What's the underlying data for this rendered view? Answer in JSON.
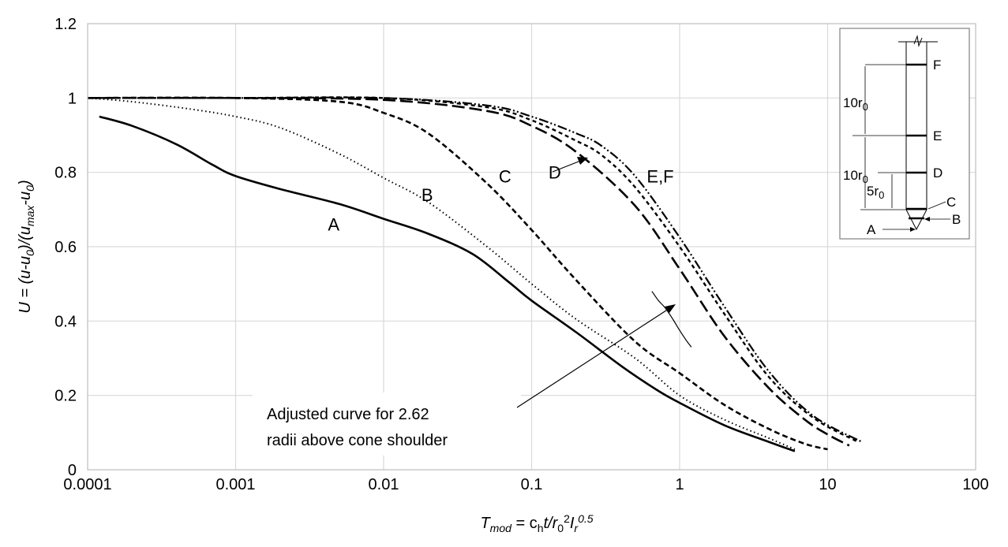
{
  "chart_data": {
    "type": "line",
    "title": "",
    "x_scale": "log",
    "xlim": [
      0.0001,
      100
    ],
    "ylim": [
      0,
      1.2
    ],
    "grid": true,
    "x_ticks": [
      "0.0001",
      "0.001",
      "0.01",
      "0.1",
      "1",
      "10",
      "100"
    ],
    "y_ticks": [
      "0",
      "0.2",
      "0.4",
      "0.6",
      "0.8",
      "1",
      "1.2"
    ],
    "xlabel": {
      "main": "T",
      "sub": "mod",
      "eq": " = c",
      "h": "h",
      "t": "t/r",
      "r0": "0",
      "sq": "2",
      "I": "I",
      "r": "r",
      "exp": "0.5"
    },
    "ylabel": {
      "pre": "U = (u-u",
      "sub0": "0",
      "mid": ")/(u",
      "submax": "max",
      "dash": "-u",
      "sub0b": "0",
      "post": ")"
    },
    "series": [
      {
        "name": "A",
        "style": "solid",
        "x": [
          0.00012,
          0.0002,
          0.0004,
          0.0007,
          0.001,
          0.002,
          0.005,
          0.01,
          0.02,
          0.04,
          0.07,
          0.1,
          0.2,
          0.4,
          0.7,
          1,
          2,
          4,
          6
        ],
        "y": [
          0.95,
          0.925,
          0.875,
          0.82,
          0.79,
          0.755,
          0.715,
          0.675,
          0.635,
          0.58,
          0.505,
          0.455,
          0.37,
          0.28,
          0.215,
          0.18,
          0.12,
          0.075,
          0.05
        ]
      },
      {
        "name": "B",
        "style": "dotted",
        "x": [
          0.0001,
          0.0002,
          0.0005,
          0.001,
          0.002,
          0.005,
          0.01,
          0.02,
          0.05,
          0.1,
          0.2,
          0.5,
          1,
          2,
          4,
          6
        ],
        "y": [
          1.0,
          0.99,
          0.97,
          0.95,
          0.92,
          0.85,
          0.785,
          0.72,
          0.6,
          0.5,
          0.405,
          0.3,
          0.2,
          0.135,
          0.085,
          0.055
        ]
      },
      {
        "name": "C",
        "style": "dashed",
        "x": [
          0.0001,
          0.001,
          0.005,
          0.01,
          0.02,
          0.05,
          0.1,
          0.2,
          0.5,
          1,
          2,
          4,
          7,
          10
        ],
        "y": [
          1.0,
          1.0,
          0.99,
          0.96,
          0.905,
          0.77,
          0.645,
          0.51,
          0.345,
          0.26,
          0.175,
          0.11,
          0.07,
          0.055
        ]
      },
      {
        "name": "D",
        "style": "longdash",
        "x": [
          0.0001,
          0.001,
          0.01,
          0.05,
          0.1,
          0.2,
          0.5,
          1,
          2,
          4,
          7,
          10,
          14
        ],
        "y": [
          1.0,
          1.0,
          0.995,
          0.965,
          0.925,
          0.855,
          0.71,
          0.54,
          0.36,
          0.22,
          0.135,
          0.095,
          0.065
        ]
      },
      {
        "name": "E",
        "style": "shortdash",
        "x": [
          0.0001,
          0.001,
          0.01,
          0.05,
          0.1,
          0.2,
          0.3,
          0.5,
          1,
          2,
          4,
          8,
          16
        ],
        "y": [
          1.0,
          1.0,
          1.0,
          0.975,
          0.94,
          0.885,
          0.845,
          0.76,
          0.6,
          0.42,
          0.25,
          0.14,
          0.075
        ]
      },
      {
        "name": "F",
        "style": "dashdotdot",
        "x": [
          0.0001,
          0.001,
          0.01,
          0.05,
          0.1,
          0.2,
          0.3,
          0.5,
          1,
          2,
          4,
          8,
          17
        ],
        "y": [
          1.0,
          1.0,
          1.0,
          0.98,
          0.95,
          0.905,
          0.87,
          0.79,
          0.625,
          0.44,
          0.265,
          0.145,
          0.075
        ]
      },
      {
        "name": "",
        "style": "solid-thin",
        "x": [
          0.65,
          0.72,
          0.8,
          0.9,
          1.0,
          1.1,
          1.2
        ],
        "y": [
          0.48,
          0.455,
          0.435,
          0.405,
          0.375,
          0.35,
          0.33
        ]
      }
    ],
    "labels": [
      {
        "text": "A",
        "x": 0.0042,
        "y": 0.66
      },
      {
        "text": "B",
        "x": 0.018,
        "y": 0.74
      },
      {
        "text": "C",
        "x": 0.06,
        "y": 0.79
      },
      {
        "text": "D",
        "x": 0.13,
        "y": 0.8
      },
      {
        "text": "E,F",
        "x": 0.6,
        "y": 0.79
      }
    ],
    "annotations": {
      "adjusted_line1": "Adjusted curve for 2.62",
      "adjusted_line2": "radii above cone shoulder"
    },
    "inset": {
      "points": [
        "F",
        "E",
        "D",
        "C",
        "B",
        "A"
      ],
      "dim1": "10r",
      "dim1_sub": "0",
      "dim2": "10r",
      "dim2_sub": "0",
      "dim3": "5r",
      "dim3_sub": "0"
    }
  }
}
